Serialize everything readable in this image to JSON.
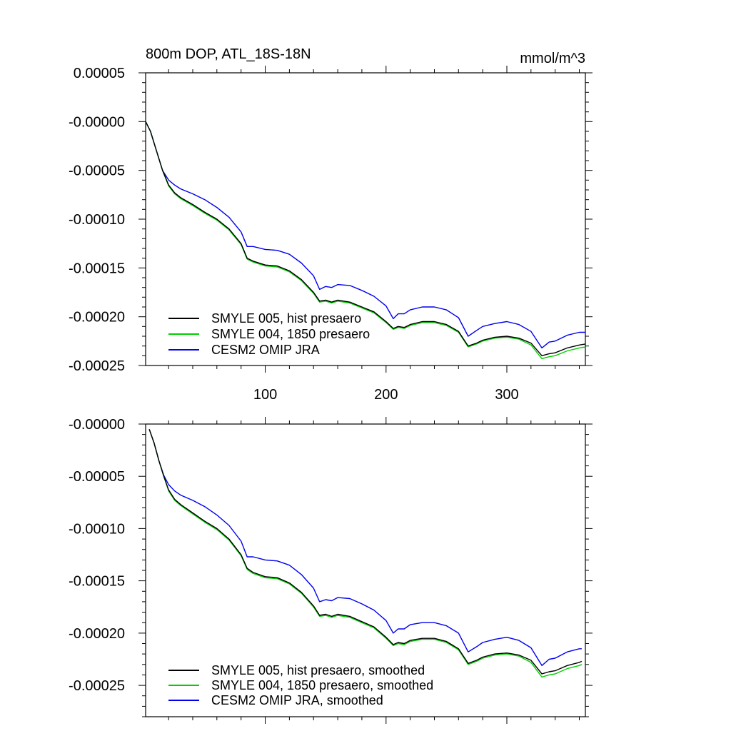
{
  "chart_data": [
    {
      "type": "line",
      "title": "800m DOP, ATL_18S-18N",
      "units": "mmol/m^3",
      "xlim": [
        1,
        365
      ],
      "ylim": [
        -0.00025,
        5e-05
      ],
      "xticks": [
        100,
        200,
        300
      ],
      "xtick_labels": [
        "100",
        "200",
        "300"
      ],
      "yticks": [
        5e-05,
        0.0,
        -5e-05,
        -0.0001,
        -0.00015,
        -0.0002,
        -0.00025
      ],
      "ytick_labels": [
        "0.00005",
        "-0.00000",
        "-0.00005",
        "-0.00010",
        "-0.00015",
        "-0.00020",
        "-0.00025"
      ],
      "legend_position": "bottom-left",
      "series": [
        {
          "name": "SMYLE 005, hist presaero",
          "color": "#000000",
          "x": [
            1,
            5,
            10,
            15,
            20,
            25,
            30,
            40,
            50,
            60,
            70,
            80,
            85,
            90,
            100,
            110,
            120,
            130,
            140,
            145,
            150,
            155,
            160,
            170,
            180,
            190,
            200,
            206,
            210,
            215,
            220,
            230,
            240,
            250,
            260,
            268,
            275,
            280,
            290,
            300,
            310,
            320,
            329,
            335,
            340,
            350,
            360,
            365
          ],
          "y": [
            0.0,
            -1e-05,
            -3e-05,
            -5e-05,
            -6.5e-05,
            -7.3e-05,
            -7.8e-05,
            -8.5e-05,
            -9.3e-05,
            -0.0001,
            -0.00011,
            -0.000125,
            -0.00014,
            -0.000143,
            -0.000147,
            -0.000148,
            -0.000153,
            -0.000162,
            -0.000175,
            -0.000184,
            -0.000183,
            -0.000185,
            -0.000183,
            -0.000185,
            -0.00019,
            -0.000195,
            -0.000205,
            -0.000212,
            -0.00021,
            -0.000211,
            -0.000208,
            -0.000205,
            -0.000205,
            -0.000208,
            -0.000215,
            -0.00023,
            -0.000227,
            -0.000224,
            -0.000221,
            -0.00022,
            -0.000222,
            -0.000227,
            -0.00024,
            -0.000238,
            -0.000237,
            -0.000232,
            -0.000229,
            -0.000228
          ]
        },
        {
          "name": "SMYLE 004, 1850 presaero",
          "color": "#00d000",
          "x": [
            1,
            5,
            10,
            15,
            20,
            25,
            30,
            40,
            50,
            60,
            70,
            80,
            85,
            90,
            100,
            110,
            120,
            130,
            140,
            145,
            150,
            155,
            160,
            170,
            180,
            190,
            200,
            206,
            210,
            215,
            220,
            230,
            240,
            250,
            260,
            268,
            275,
            280,
            290,
            300,
            310,
            320,
            329,
            335,
            340,
            350,
            360,
            365
          ],
          "y": [
            0.0,
            -1e-05,
            -3e-05,
            -5e-05,
            -6.6e-05,
            -7.4e-05,
            -7.9e-05,
            -8.6e-05,
            -9.4e-05,
            -0.000101,
            -0.000111,
            -0.000126,
            -0.000141,
            -0.000144,
            -0.000148,
            -0.000149,
            -0.000154,
            -0.000163,
            -0.000176,
            -0.000185,
            -0.000184,
            -0.000186,
            -0.000184,
            -0.000186,
            -0.000191,
            -0.000196,
            -0.000206,
            -0.000213,
            -0.000211,
            -0.000212,
            -0.000209,
            -0.000206,
            -0.000206,
            -0.000209,
            -0.000216,
            -0.000231,
            -0.000228,
            -0.000225,
            -0.000222,
            -0.000221,
            -0.000223,
            -0.000229,
            -0.000243,
            -0.000241,
            -0.00024,
            -0.000235,
            -0.000232,
            -0.000231
          ]
        },
        {
          "name": "CESM2 OMIP JRA",
          "color": "#0000ee",
          "x": [
            1,
            5,
            10,
            15,
            20,
            25,
            30,
            40,
            50,
            60,
            70,
            80,
            85,
            90,
            100,
            110,
            120,
            130,
            140,
            145,
            150,
            155,
            160,
            170,
            180,
            190,
            200,
            206,
            210,
            215,
            220,
            230,
            240,
            250,
            260,
            268,
            275,
            280,
            290,
            300,
            310,
            320,
            329,
            335,
            340,
            350,
            360,
            365
          ],
          "y": [
            0.0,
            -1e-05,
            -3e-05,
            -5e-05,
            -6e-05,
            -6.5e-05,
            -6.9e-05,
            -7.4e-05,
            -8e-05,
            -8.8e-05,
            -9.8e-05,
            -0.000113,
            -0.000128,
            -0.000128,
            -0.000131,
            -0.000132,
            -0.000136,
            -0.000145,
            -0.000158,
            -0.000172,
            -0.000169,
            -0.00017,
            -0.000167,
            -0.000168,
            -0.000173,
            -0.000179,
            -0.000189,
            -0.000202,
            -0.000197,
            -0.000197,
            -0.000193,
            -0.00019,
            -0.00019,
            -0.000193,
            -0.000201,
            -0.00022,
            -0.000214,
            -0.00021,
            -0.000207,
            -0.000205,
            -0.000208,
            -0.000215,
            -0.000232,
            -0.000226,
            -0.000225,
            -0.000219,
            -0.000216,
            -0.000216
          ]
        }
      ]
    },
    {
      "type": "line",
      "title": "",
      "xlim": [
        1,
        365
      ],
      "ylim": [
        -0.00028,
        0.0
      ],
      "xticks": [
        100,
        200,
        300
      ],
      "xtick_labels": [],
      "yticks": [
        0.0,
        -5e-05,
        -0.0001,
        -0.00015,
        -0.0002,
        -0.00025
      ],
      "ytick_labels": [
        "-0.00000",
        "-0.00005",
        "-0.00010",
        "-0.00015",
        "-0.00020",
        "-0.00025"
      ],
      "legend_position": "bottom-left",
      "series": [
        {
          "name": "SMYLE 005, hist presaero, smoothed",
          "color": "#000000",
          "x": [
            4,
            8,
            12,
            16,
            20,
            25,
            30,
            40,
            50,
            60,
            70,
            80,
            85,
            90,
            100,
            110,
            120,
            130,
            140,
            145,
            150,
            155,
            160,
            170,
            180,
            190,
            200,
            206,
            210,
            215,
            220,
            230,
            240,
            250,
            260,
            268,
            275,
            280,
            290,
            300,
            310,
            320,
            329,
            335,
            340,
            350,
            360,
            362
          ],
          "y": [
            -5e-06,
            -1.8e-05,
            -3.5e-05,
            -5e-05,
            -6.3e-05,
            -7.2e-05,
            -7.7e-05,
            -8.5e-05,
            -9.3e-05,
            -0.0001,
            -0.00011,
            -0.000125,
            -0.000138,
            -0.000142,
            -0.000146,
            -0.000147,
            -0.000152,
            -0.000161,
            -0.000174,
            -0.000183,
            -0.000182,
            -0.000184,
            -0.000182,
            -0.000184,
            -0.000189,
            -0.000194,
            -0.000204,
            -0.000211,
            -0.000209,
            -0.00021,
            -0.000207,
            -0.000205,
            -0.000205,
            -0.000208,
            -0.000215,
            -0.000229,
            -0.000226,
            -0.000223,
            -0.00022,
            -0.000219,
            -0.000221,
            -0.000226,
            -0.000239,
            -0.000237,
            -0.000236,
            -0.000231,
            -0.000228,
            -0.000227
          ]
        },
        {
          "name": "SMYLE 004, 1850 presaero, smoothed",
          "color": "#00d000",
          "x": [
            4,
            8,
            12,
            16,
            20,
            25,
            30,
            40,
            50,
            60,
            70,
            80,
            85,
            90,
            100,
            110,
            120,
            130,
            140,
            145,
            150,
            155,
            160,
            170,
            180,
            190,
            200,
            206,
            210,
            215,
            220,
            230,
            240,
            250,
            260,
            268,
            275,
            280,
            290,
            300,
            310,
            320,
            329,
            335,
            340,
            350,
            360,
            362
          ],
          "y": [
            -5e-06,
            -1.8e-05,
            -3.5e-05,
            -5e-05,
            -6.4e-05,
            -7.3e-05,
            -7.8e-05,
            -8.6e-05,
            -9.4e-05,
            -0.000101,
            -0.000111,
            -0.000126,
            -0.000139,
            -0.000143,
            -0.000147,
            -0.000148,
            -0.000153,
            -0.000162,
            -0.000175,
            -0.000184,
            -0.000183,
            -0.000185,
            -0.000183,
            -0.000185,
            -0.00019,
            -0.000195,
            -0.000205,
            -0.000212,
            -0.00021,
            -0.000211,
            -0.000208,
            -0.000206,
            -0.000206,
            -0.000209,
            -0.000216,
            -0.00023,
            -0.000227,
            -0.000224,
            -0.000221,
            -0.00022,
            -0.000222,
            -0.000228,
            -0.000242,
            -0.00024,
            -0.000239,
            -0.000234,
            -0.000231,
            -0.00023
          ]
        },
        {
          "name": "CESM2 OMIP JRA, smoothed",
          "color": "#0000ee",
          "x": [
            4,
            8,
            12,
            16,
            20,
            25,
            30,
            40,
            50,
            60,
            70,
            80,
            85,
            90,
            100,
            110,
            120,
            130,
            140,
            145,
            150,
            155,
            160,
            170,
            180,
            190,
            200,
            206,
            210,
            215,
            220,
            230,
            240,
            250,
            260,
            268,
            275,
            280,
            290,
            300,
            310,
            320,
            329,
            335,
            340,
            350,
            360,
            362
          ],
          "y": [
            -5e-06,
            -1.8e-05,
            -3.5e-05,
            -4.9e-05,
            -5.8e-05,
            -6.4e-05,
            -6.8e-05,
            -7.3e-05,
            -7.9e-05,
            -8.7e-05,
            -9.7e-05,
            -0.000112,
            -0.000127,
            -0.000127,
            -0.00013,
            -0.000131,
            -0.000135,
            -0.000144,
            -0.000157,
            -0.00017,
            -0.000168,
            -0.000169,
            -0.000166,
            -0.000167,
            -0.000172,
            -0.000178,
            -0.000188,
            -0.0002,
            -0.000196,
            -0.000196,
            -0.000192,
            -0.00019,
            -0.00019,
            -0.000193,
            -0.0002,
            -0.000218,
            -0.000213,
            -0.000209,
            -0.000206,
            -0.000204,
            -0.000207,
            -0.000214,
            -0.000231,
            -0.000225,
            -0.000224,
            -0.000218,
            -0.000215,
            -0.000215
          ]
        }
      ]
    }
  ]
}
